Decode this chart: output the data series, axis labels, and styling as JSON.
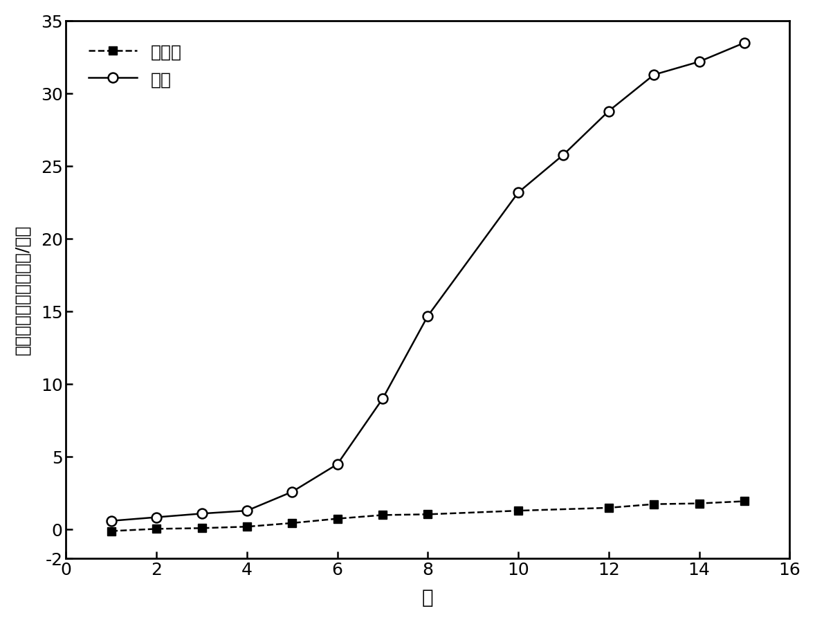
{
  "protein_x": [
    1,
    2,
    3,
    4,
    5,
    6,
    7,
    8,
    10,
    12,
    13,
    14,
    15
  ],
  "protein_y": [
    -0.1,
    0.05,
    0.1,
    0.2,
    0.45,
    0.75,
    1.0,
    1.05,
    1.3,
    1.5,
    1.75,
    1.8,
    1.95
  ],
  "polysaccharide_x": [
    1,
    2,
    3,
    4,
    5,
    6,
    7,
    8,
    10,
    11,
    12,
    13,
    14,
    15
  ],
  "polysaccharide_y": [
    0.6,
    0.85,
    1.1,
    1.3,
    2.6,
    4.5,
    9.0,
    14.7,
    23.2,
    25.8,
    28.8,
    31.3,
    32.2,
    33.5
  ],
  "xlabel": "天",
  "ylabel": "胞外多聚物浓度（毫克/升）",
  "legend_protein": "蛋白质",
  "legend_polysaccharide": "多糖",
  "xlim": [
    0,
    16
  ],
  "ylim": [
    -2,
    35
  ],
  "yticks": [
    -2,
    0,
    5,
    10,
    15,
    20,
    25,
    30,
    35
  ],
  "xticks": [
    0,
    2,
    4,
    6,
    8,
    10,
    12,
    14,
    16
  ],
  "line_color": "#000000",
  "background_color": "#ffffff",
  "figsize": [
    11.78,
    8.99
  ],
  "dpi": 100
}
